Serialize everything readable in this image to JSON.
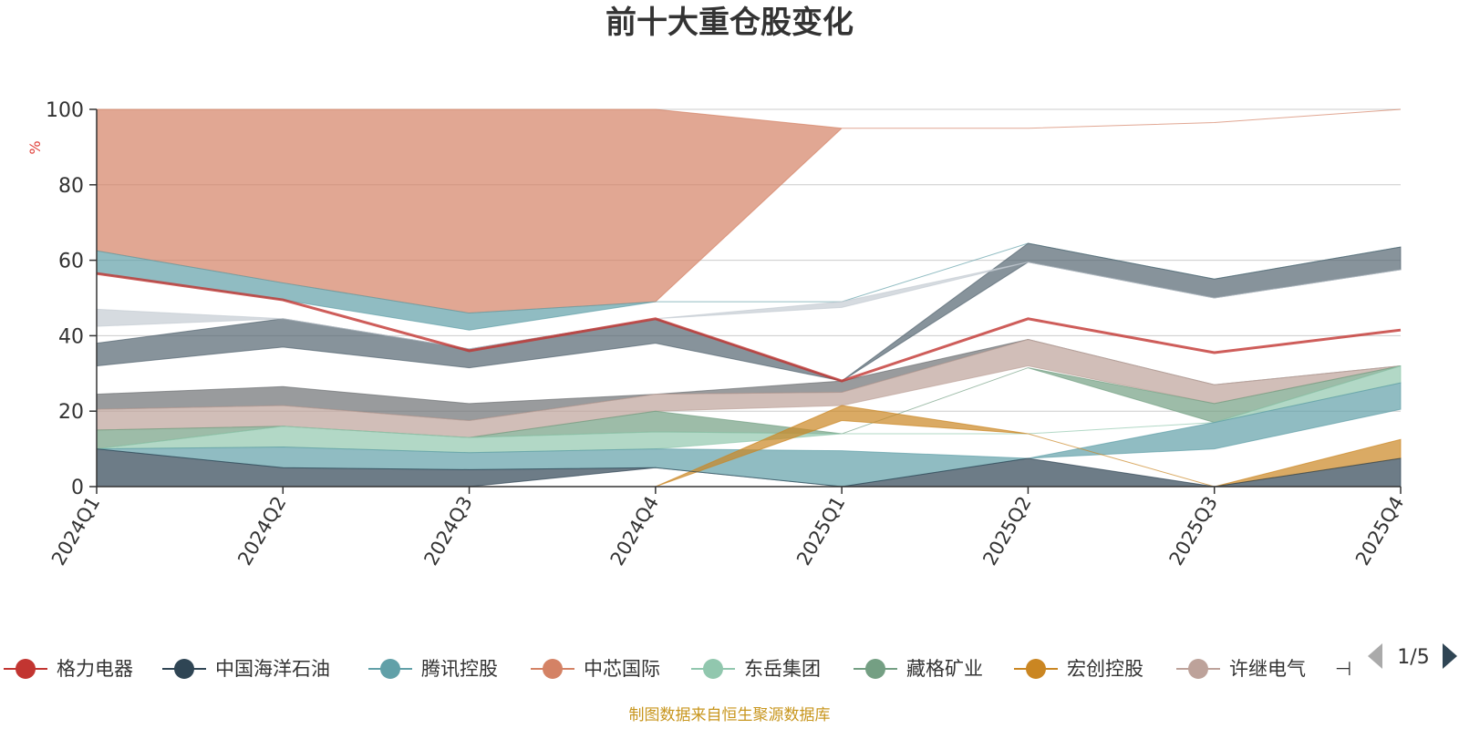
{
  "chart_data": {
    "type": "area",
    "title": "前十大重仓股变化",
    "ylabel": "%",
    "ylim": [
      0,
      100
    ],
    "yticks": [
      0,
      20,
      40,
      60,
      80,
      100
    ],
    "categories": [
      "2024Q1",
      "2024Q2",
      "2024Q3",
      "2024Q4",
      "2025Q1",
      "2025Q2",
      "2025Q3",
      "2025Q4"
    ],
    "grid": true,
    "legend_position": "bottom",
    "series": [
      {
        "name": "格力电器",
        "color": "#c23531",
        "lower": [
          56.5,
          49.5,
          36,
          44.5,
          28,
          44.5,
          35.5,
          41.5
        ],
        "upper": [
          56.5,
          49.5,
          36,
          44.5,
          28,
          44.5,
          35.5,
          41.5
        ]
      },
      {
        "name": "中国海洋石油",
        "color": "#2f4554",
        "lower": [
          0,
          0,
          0,
          5,
          0,
          0,
          0,
          0
        ],
        "upper": [
          10,
          5,
          4.5,
          5,
          0,
          7.5,
          0,
          7.5
        ]
      },
      {
        "name": "腾讯控股",
        "color": "#61a0a8",
        "lower": [
          10,
          5,
          4.5,
          5,
          0,
          7.5,
          10,
          20.5
        ],
        "upper": [
          10,
          10.5,
          9,
          10,
          9.5,
          7.5,
          17,
          27.5
        ]
      },
      {
        "name": "中芯国际",
        "color": "#d48265",
        "lower": [
          62.5,
          54,
          46,
          49,
          95,
          95,
          96.5,
          100
        ],
        "upper": [
          100,
          100,
          100,
          100,
          95,
          95,
          96.5,
          100
        ]
      },
      {
        "name": "东岳集团",
        "color": "#91c7ae",
        "lower": [
          10,
          10.5,
          9,
          10,
          14,
          14,
          17,
          27.5
        ],
        "upper": [
          10,
          16,
          13,
          14.5,
          14,
          14,
          17,
          32
        ]
      },
      {
        "name": "藏格矿业",
        "color": "#749f83",
        "lower": [
          10,
          16,
          13,
          14.5,
          14,
          31.5,
          17,
          32
        ],
        "upper": [
          15,
          16,
          13,
          20,
          14,
          31.5,
          22,
          32
        ]
      },
      {
        "name": "宏创控股",
        "color": "#ca8622",
        "lower": [
          0,
          0,
          0,
          0,
          17.5,
          14,
          0,
          7.5
        ],
        "upper": [
          0,
          0,
          0,
          0,
          21.5,
          14,
          0,
          12.5
        ]
      },
      {
        "name": "许继电气",
        "color": "#bda29a",
        "lower": [
          15,
          16,
          13,
          20,
          21.5,
          32,
          22,
          32
        ],
        "upper": [
          20.5,
          21.5,
          17.5,
          24.5,
          25,
          39,
          27,
          32
        ]
      }
    ],
    "extra_bands": [
      {
        "color": "#6e7074",
        "lower": [
          20.5,
          21.5,
          17.5,
          24.5,
          25,
          39,
          27,
          32
        ],
        "upper": [
          24.5,
          26.5,
          22,
          24.5,
          28,
          39,
          27,
          32
        ]
      },
      {
        "color": "#546570",
        "lower": [
          32,
          37,
          31.5,
          38,
          28,
          59.5,
          50,
          57.5
        ],
        "upper": [
          38,
          44.5,
          36.5,
          44.5,
          28,
          64.5,
          55,
          63.5
        ]
      },
      {
        "color": "#c4ccd3",
        "lower": [
          42.5,
          44.5,
          36.5,
          44.5,
          47.5,
          59.5,
          50,
          57.5
        ],
        "upper": [
          47,
          44.5,
          36.5,
          44.5,
          49,
          59.5,
          50,
          57.5
        ]
      },
      {
        "color": "#61a0a8",
        "lower": [
          56.5,
          49.5,
          41.5,
          49,
          49,
          64.5,
          55,
          63.5
        ],
        "upper": [
          62.5,
          54,
          46,
          49,
          49,
          64.5,
          55,
          63.5
        ]
      }
    ]
  },
  "legend": {
    "items": [
      {
        "name": "格力电器",
        "color": "#c23531"
      },
      {
        "name": "中国海洋石油",
        "color": "#2f4554"
      },
      {
        "name": "腾讯控股",
        "color": "#61a0a8"
      },
      {
        "name": "中芯国际",
        "color": "#d48265"
      },
      {
        "name": "东岳集团",
        "color": "#91c7ae"
      },
      {
        "name": "藏格矿业",
        "color": "#749f83"
      },
      {
        "name": "宏创控股",
        "color": "#ca8622"
      },
      {
        "name": "许继电气",
        "color": "#bda29a"
      }
    ],
    "truncated_marker": "⊣",
    "page_indicator": "1/5"
  },
  "source_text": "制图数据来自恒生聚源数据库",
  "colors": {
    "text": "#333333",
    "axis": "#333333",
    "grid": "#cccccc",
    "source": "#c8961e",
    "unit": "#e0403a",
    "pager_disabled": "#aaaaaa",
    "pager_active": "#2f4554"
  }
}
